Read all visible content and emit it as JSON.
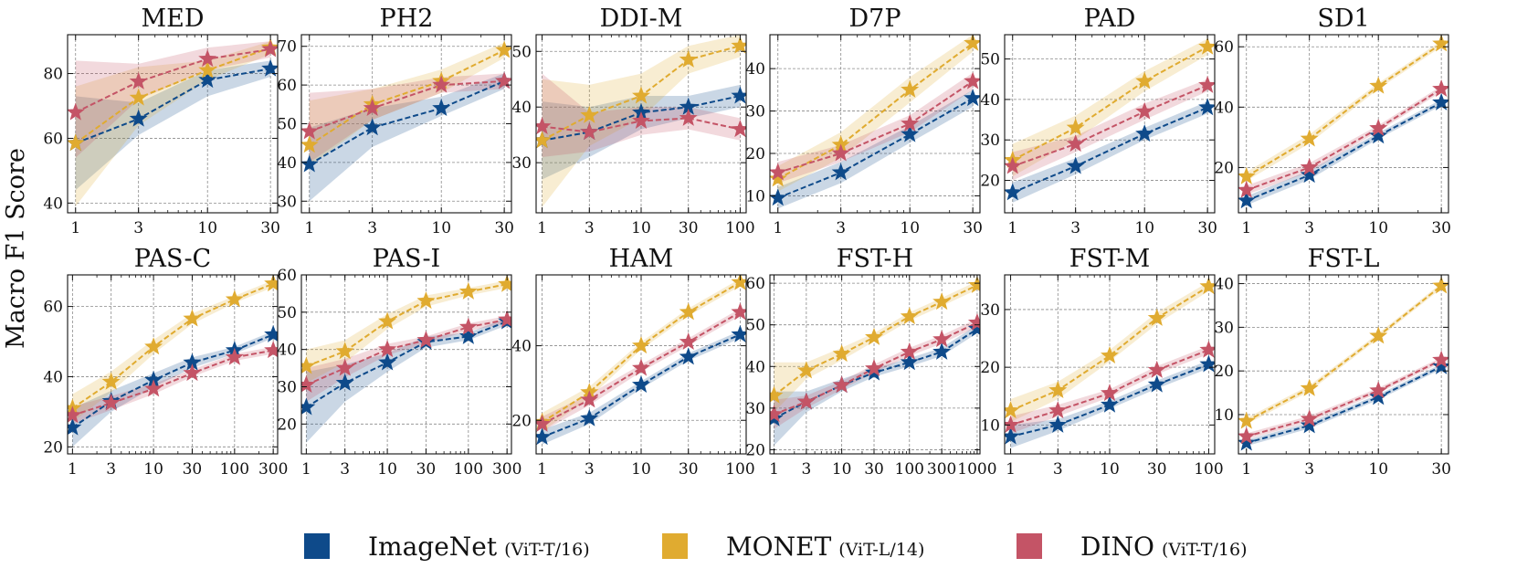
{
  "figure": {
    "ylabel": "Macro F1 Score"
  },
  "colors": {
    "ImageNet": "#0e4a8a",
    "MONET": "#e0ab30",
    "DINO": "#c45466"
  },
  "legend": [
    {
      "key": "ImageNet",
      "label": "ImageNet",
      "sub": "(ViT-T/16)"
    },
    {
      "key": "MONET",
      "label": "MONET",
      "sub": "(ViT-L/14)"
    },
    {
      "key": "DINO",
      "label": "DINO",
      "sub": "(ViT-T/16)"
    }
  ],
  "chart_data": [
    {
      "type": "line",
      "title": "MED",
      "x": [
        1,
        3,
        10,
        30
      ],
      "xticks": [
        "1",
        "3",
        "10",
        "30"
      ],
      "xlim": [
        0.87,
        34
      ],
      "ylim": [
        37,
        92
      ],
      "yticks": [
        40,
        60,
        80
      ],
      "series": [
        {
          "name": "ImageNet",
          "values": [
            58.5,
            66,
            78,
            81.5
          ],
          "lower": [
            44,
            61,
            73,
            79
          ],
          "upper": [
            73,
            71,
            81,
            84
          ]
        },
        {
          "name": "MONET",
          "values": [
            58.5,
            72.5,
            81,
            88
          ],
          "lower": [
            39,
            64,
            78,
            86
          ],
          "upper": [
            76,
            82,
            84,
            90
          ]
        },
        {
          "name": "DINO",
          "values": [
            68,
            77.5,
            84.5,
            87.5
          ],
          "lower": [
            54,
            72,
            81,
            85
          ],
          "upper": [
            84,
            83,
            88,
            90
          ]
        }
      ]
    },
    {
      "type": "line",
      "title": "PH2",
      "x": [
        1,
        3,
        10,
        30
      ],
      "xticks": [
        "1",
        "3",
        "10",
        "30"
      ],
      "xlim": [
        0.87,
        34
      ],
      "ylim": [
        27,
        73
      ],
      "yticks": [
        30,
        40,
        50,
        60,
        70
      ],
      "series": [
        {
          "name": "ImageNet",
          "values": [
            39.5,
            49,
            54,
            61
          ],
          "lower": [
            30,
            44,
            52,
            59
          ],
          "upper": [
            49,
            54,
            57,
            63
          ]
        },
        {
          "name": "MONET",
          "values": [
            44.5,
            55,
            61,
            69
          ],
          "lower": [
            39,
            51,
            58,
            67
          ],
          "upper": [
            56,
            59,
            64,
            71
          ]
        },
        {
          "name": "DINO",
          "values": [
            48,
            54,
            60,
            61
          ],
          "lower": [
            40,
            51,
            58,
            59
          ],
          "upper": [
            58,
            59,
            62,
            63
          ]
        }
      ]
    },
    {
      "type": "line",
      "title": "DDI-M",
      "x": [
        1,
        3,
        10,
        30,
        100
      ],
      "xticks": [
        "1",
        "3",
        "10",
        "30",
        "100"
      ],
      "xlim": [
        0.87,
        115
      ],
      "ylim": [
        21,
        53
      ],
      "yticks": [
        30,
        40,
        50
      ],
      "series": [
        {
          "name": "ImageNet",
          "values": [
            34,
            35.5,
            39,
            40,
            42
          ],
          "lower": [
            27,
            31,
            36,
            38,
            40
          ],
          "upper": [
            41,
            40,
            42,
            42,
            44
          ]
        },
        {
          "name": "MONET",
          "values": [
            34,
            38.5,
            42,
            48.5,
            51
          ],
          "lower": [
            22,
            33,
            38,
            46,
            49
          ],
          "upper": [
            45,
            44,
            46,
            51,
            53
          ]
        },
        {
          "name": "DINO",
          "values": [
            36.5,
            35.5,
            37.5,
            38,
            36
          ],
          "lower": [
            31,
            32,
            35,
            36,
            34
          ],
          "upper": [
            46,
            39,
            40,
            40,
            38
          ]
        }
      ]
    },
    {
      "type": "line",
      "title": "D7P",
      "x": [
        1,
        3,
        10,
        30
      ],
      "xticks": [
        "1",
        "3",
        "10",
        "30"
      ],
      "xlim": [
        0.87,
        34
      ],
      "ylim": [
        6,
        48
      ],
      "yticks": [
        10,
        20,
        30,
        40
      ],
      "series": [
        {
          "name": "ImageNet",
          "values": [
            9.5,
            15.5,
            24.5,
            33
          ],
          "lower": [
            7,
            13,
            22.5,
            31
          ],
          "upper": [
            12,
            18,
            26.5,
            35
          ]
        },
        {
          "name": "MONET",
          "values": [
            14,
            22,
            35,
            46
          ],
          "lower": [
            11,
            19,
            32,
            44
          ],
          "upper": [
            17,
            25,
            38,
            48
          ]
        },
        {
          "name": "DINO",
          "values": [
            15.5,
            20,
            27,
            37
          ],
          "lower": [
            13,
            18,
            25,
            35
          ],
          "upper": [
            18,
            22,
            29,
            39
          ]
        }
      ]
    },
    {
      "type": "line",
      "title": "PAD",
      "x": [
        1,
        3,
        10,
        30
      ],
      "xticks": [
        "1",
        "3",
        "10",
        "30"
      ],
      "xlim": [
        0.87,
        34
      ],
      "ylim": [
        12,
        56
      ],
      "yticks": [
        20,
        30,
        40,
        50
      ],
      "series": [
        {
          "name": "ImageNet",
          "values": [
            17,
            23.5,
            31.5,
            38
          ],
          "lower": [
            14.5,
            21.5,
            30,
            36.5
          ],
          "upper": [
            19.5,
            25.5,
            33,
            39.5
          ]
        },
        {
          "name": "MONET",
          "values": [
            25,
            33,
            44.5,
            53
          ],
          "lower": [
            21,
            30,
            42,
            51
          ],
          "upper": [
            29,
            36,
            47,
            55
          ]
        },
        {
          "name": "DINO",
          "values": [
            23.5,
            29,
            37,
            43.5
          ],
          "lower": [
            20,
            27,
            35,
            42
          ],
          "upper": [
            27,
            31,
            39,
            45
          ]
        }
      ]
    },
    {
      "type": "line",
      "title": "SD1",
      "x": [
        1,
        3,
        10,
        30
      ],
      "xticks": [
        "1",
        "3",
        "10",
        "30"
      ],
      "xlim": [
        0.87,
        34
      ],
      "ylim": [
        5,
        64
      ],
      "yticks": [
        20,
        40,
        60
      ],
      "series": [
        {
          "name": "ImageNet",
          "values": [
            9,
            17.5,
            30.5,
            41.5
          ],
          "lower": [
            7.5,
            16,
            29.5,
            40.5
          ],
          "upper": [
            10.5,
            19,
            31.5,
            42.5
          ]
        },
        {
          "name": "MONET",
          "values": [
            17,
            29.5,
            47,
            61
          ],
          "lower": [
            15.5,
            28,
            46,
            60
          ],
          "upper": [
            18.5,
            31,
            48,
            62
          ]
        },
        {
          "name": "DINO",
          "values": [
            12.5,
            20,
            33,
            46
          ],
          "lower": [
            11,
            18.5,
            32,
            45
          ],
          "upper": [
            14,
            21.5,
            34,
            47
          ]
        }
      ]
    },
    {
      "type": "line",
      "title": "PAS-C",
      "x": [
        1,
        3,
        10,
        30,
        100,
        300
      ],
      "xticks": [
        "1",
        "3",
        "10",
        "30",
        "100",
        "300"
      ],
      "xlim": [
        0.87,
        340
      ],
      "ylim": [
        18,
        69
      ],
      "yticks": [
        20,
        40,
        60
      ],
      "series": [
        {
          "name": "ImageNet",
          "values": [
            25.5,
            33,
            39,
            44,
            47.5,
            52
          ],
          "lower": [
            20,
            30,
            37,
            42.5,
            46.5,
            51
          ],
          "upper": [
            31,
            36,
            41,
            45.5,
            48.5,
            53
          ]
        },
        {
          "name": "MONET",
          "values": [
            31,
            38.5,
            48.5,
            56.5,
            62,
            66.5
          ],
          "lower": [
            27,
            35.5,
            46.5,
            55,
            61,
            65.5
          ],
          "upper": [
            35,
            41.5,
            50.5,
            58,
            63,
            67.5
          ]
        },
        {
          "name": "DINO",
          "values": [
            29,
            32.5,
            36.5,
            41,
            45.5,
            47.5
          ],
          "lower": [
            26.5,
            30.5,
            35,
            40,
            44.5,
            46.5
          ],
          "upper": [
            31.5,
            34.5,
            38,
            42,
            46.5,
            48.5
          ]
        }
      ]
    },
    {
      "type": "line",
      "title": "PAS-I",
      "x": [
        1,
        3,
        10,
        30,
        100,
        300
      ],
      "xticks": [
        "1",
        "3",
        "10",
        "30",
        "100",
        "300"
      ],
      "xlim": [
        0.87,
        340
      ],
      "ylim": [
        12,
        60
      ],
      "yticks": [
        20,
        30,
        40,
        50,
        60
      ],
      "series": [
        {
          "name": "ImageNet",
          "values": [
            24.5,
            31,
            36.5,
            42,
            43.5,
            47.5
          ],
          "lower": [
            15,
            26,
            34,
            40.5,
            42.5,
            46.5
          ],
          "upper": [
            34,
            36,
            39,
            43.5,
            44.5,
            48.5
          ]
        },
        {
          "name": "MONET",
          "values": [
            35.5,
            39.5,
            47.5,
            53,
            55.5,
            57.5
          ],
          "lower": [
            31,
            36.5,
            45.5,
            51.5,
            54.5,
            56.5
          ],
          "upper": [
            40,
            42.5,
            49.5,
            54.5,
            56.5,
            58.5
          ]
        },
        {
          "name": "DINO",
          "values": [
            30.5,
            35,
            40,
            42.5,
            46,
            48
          ],
          "lower": [
            26,
            32.5,
            38.5,
            41.5,
            45,
            47
          ],
          "upper": [
            35,
            37.5,
            41.5,
            43.5,
            47,
            49
          ]
        }
      ]
    },
    {
      "type": "line",
      "title": "HAM",
      "x": [
        1,
        3,
        10,
        30,
        100
      ],
      "xticks": [
        "1",
        "3",
        "10",
        "30",
        "100"
      ],
      "xlim": [
        0.87,
        115
      ],
      "ylim": [
        11,
        59
      ],
      "yticks": [
        20,
        40
      ],
      "series": [
        {
          "name": "ImageNet",
          "values": [
            15.5,
            20.5,
            29.5,
            37,
            43
          ],
          "lower": [
            13.5,
            19,
            28.5,
            36,
            42
          ],
          "upper": [
            17.5,
            22,
            30.5,
            38,
            44
          ]
        },
        {
          "name": "MONET",
          "values": [
            19.5,
            27.5,
            40,
            49,
            57
          ],
          "lower": [
            17,
            26,
            39,
            48,
            56
          ],
          "upper": [
            22,
            29,
            41,
            50,
            58
          ]
        },
        {
          "name": "DINO",
          "values": [
            19,
            25.5,
            34,
            41,
            49
          ],
          "lower": [
            17,
            24,
            33,
            40,
            48
          ],
          "upper": [
            21,
            27,
            35,
            42,
            50
          ]
        }
      ]
    },
    {
      "type": "line",
      "title": "FST-H",
      "x": [
        1,
        3,
        10,
        30,
        100,
        300,
        1000
      ],
      "xticks": [
        "1",
        "3",
        "10",
        "30",
        "100",
        "300",
        "1000"
      ],
      "xlim": [
        0.87,
        1100
      ],
      "ylim": [
        19,
        62
      ],
      "yticks": [
        20,
        30,
        40,
        50,
        60
      ],
      "series": [
        {
          "name": "ImageNet",
          "values": [
            27.5,
            31.5,
            35.5,
            38.5,
            41,
            43.5,
            49
          ],
          "lower": [
            21,
            29,
            34,
            37.5,
            40,
            42.5,
            48
          ],
          "upper": [
            34,
            34,
            37,
            39.5,
            42,
            44.5,
            50
          ]
        },
        {
          "name": "MONET",
          "values": [
            33,
            39,
            43,
            47,
            52,
            55.5,
            59.5
          ],
          "lower": [
            29,
            37,
            41.5,
            46,
            51,
            54.5,
            58.5
          ],
          "upper": [
            41,
            41,
            44.5,
            48,
            53,
            56.5,
            60.5
          ]
        },
        {
          "name": "DINO",
          "values": [
            28.5,
            31.5,
            35.5,
            39.5,
            43.5,
            46.5,
            50.5
          ],
          "lower": [
            25,
            30,
            34.5,
            38.5,
            42.5,
            45.5,
            49.5
          ],
          "upper": [
            32,
            33,
            36.5,
            40.5,
            44.5,
            47.5,
            51.5
          ]
        }
      ]
    },
    {
      "type": "line",
      "title": "FST-M",
      "x": [
        1,
        3,
        10,
        30,
        100
      ],
      "xticks": [
        "1",
        "3",
        "10",
        "30",
        "100"
      ],
      "xlim": [
        0.87,
        115
      ],
      "ylim": [
        5,
        36
      ],
      "yticks": [
        10,
        20,
        30
      ],
      "series": [
        {
          "name": "ImageNet",
          "values": [
            8,
            10,
            13.5,
            17,
            20.5
          ],
          "lower": [
            6,
            9,
            12.8,
            16.3,
            19.8
          ],
          "upper": [
            10,
            11,
            14.2,
            17.7,
            21.2
          ]
        },
        {
          "name": "MONET",
          "values": [
            12.5,
            16,
            22,
            28.5,
            34
          ],
          "lower": [
            10.5,
            14.5,
            21,
            27.5,
            33.2
          ],
          "upper": [
            14.5,
            17.5,
            23,
            29.5,
            34.8
          ]
        },
        {
          "name": "DINO",
          "values": [
            10,
            12.5,
            15.5,
            19.5,
            23
          ],
          "lower": [
            8.5,
            11.5,
            14.8,
            18.8,
            22.3
          ],
          "upper": [
            11.5,
            13.5,
            16.2,
            20.2,
            23.7
          ]
        }
      ]
    },
    {
      "type": "line",
      "title": "FST-L",
      "x": [
        1,
        3,
        10,
        30
      ],
      "xticks": [
        "1",
        "3",
        "10",
        "30"
      ],
      "xlim": [
        0.87,
        34
      ],
      "ylim": [
        1,
        42
      ],
      "yticks": [
        10,
        20,
        30,
        40
      ],
      "series": [
        {
          "name": "ImageNet",
          "values": [
            3.5,
            7.5,
            14,
            21
          ],
          "lower": [
            2.8,
            6.8,
            13.4,
            20.4
          ],
          "upper": [
            4.2,
            8.2,
            14.6,
            21.6
          ]
        },
        {
          "name": "MONET",
          "values": [
            8.5,
            16,
            28,
            39.5
          ],
          "lower": [
            7.8,
            15.3,
            27.4,
            38.9
          ],
          "upper": [
            9.2,
            16.7,
            28.6,
            40.1
          ]
        },
        {
          "name": "DINO",
          "values": [
            5,
            9,
            15.5,
            22.5
          ],
          "lower": [
            4.3,
            8.3,
            14.9,
            21.9
          ],
          "upper": [
            5.7,
            9.7,
            16.1,
            23.1
          ]
        }
      ]
    }
  ]
}
